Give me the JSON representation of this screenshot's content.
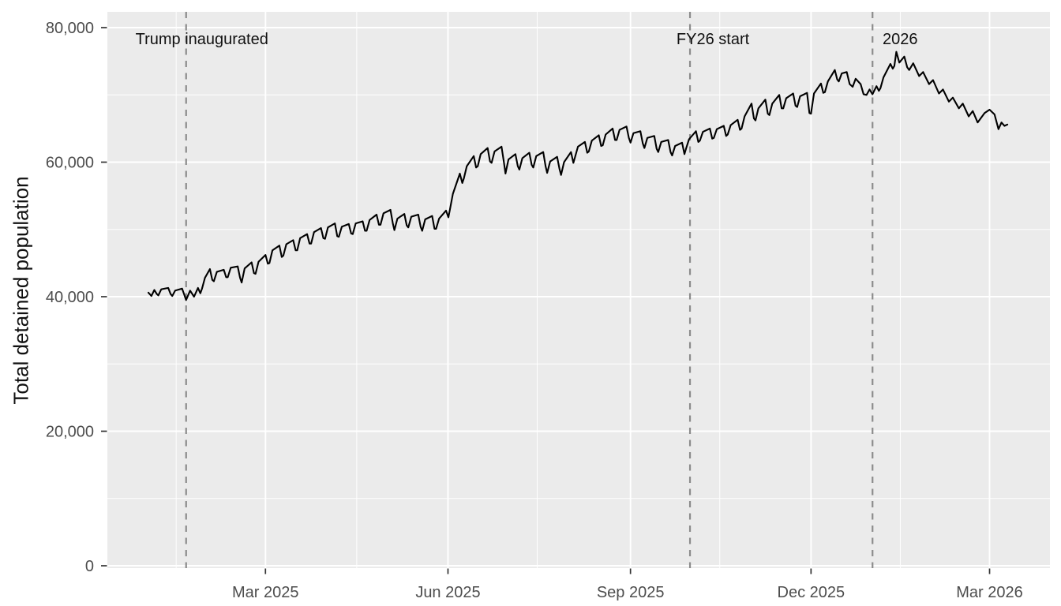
{
  "chart_data": {
    "type": "line",
    "title": "",
    "xlabel": "",
    "ylabel": "Total detained population",
    "legend": "none",
    "x_axis": {
      "tick_labels": [
        "Mar 2025",
        "Jun 2025",
        "Sep 2025",
        "Dec 2025",
        "Mar 2026"
      ],
      "tick_days": [
        59,
        151,
        243,
        334,
        424
      ],
      "minor_grid_days": [
        14,
        105,
        196,
        288,
        379
      ],
      "day_zero": "start of line (early Jan 2025)"
    },
    "y_axis": {
      "tick_labels": [
        "0",
        "20,000",
        "40,000",
        "60,000",
        "80,000"
      ],
      "tick_values": [
        0,
        20000,
        40000,
        60000,
        80000
      ],
      "minor_grid_values": [
        10000,
        30000,
        50000,
        70000
      ],
      "range": [
        0,
        80000
      ],
      "grid": true
    },
    "events": [
      {
        "label": "Trump inaugurated",
        "day": 19
      },
      {
        "label": "FY26 start",
        "day": 273
      },
      {
        "label": "2026",
        "day": 365
      }
    ],
    "series": [
      {
        "name": "Total detained population",
        "units": "thousands of people",
        "points_day_value": [
          [
            0,
            40.6
          ],
          [
            1.5,
            40.1
          ],
          [
            3,
            41.0
          ],
          [
            4.2,
            40.4
          ],
          [
            5,
            40.2
          ],
          [
            6.5,
            41.1
          ],
          [
            10,
            41.3
          ],
          [
            11.2,
            40.4
          ],
          [
            12,
            40.1
          ],
          [
            13.5,
            40.9
          ],
          [
            17,
            41.2
          ],
          [
            18.2,
            40.2
          ],
          [
            19,
            39.5
          ],
          [
            21,
            40.9
          ],
          [
            23,
            40.0
          ],
          [
            25,
            41.3
          ],
          [
            26.2,
            40.5
          ],
          [
            27,
            41.2
          ],
          [
            28.5,
            42.8
          ],
          [
            31,
            44.1
          ],
          [
            32.2,
            42.5
          ],
          [
            33,
            42.3
          ],
          [
            34.5,
            43.7
          ],
          [
            38,
            44.0
          ],
          [
            39.2,
            42.9
          ],
          [
            40,
            42.9
          ],
          [
            41.5,
            44.3
          ],
          [
            45,
            44.5
          ],
          [
            46.2,
            42.8
          ],
          [
            47,
            42.1
          ],
          [
            48.5,
            44.2
          ],
          [
            52,
            45.1
          ],
          [
            53.2,
            43.5
          ],
          [
            54,
            43.4
          ],
          [
            55.5,
            45.2
          ],
          [
            59,
            46.2
          ],
          [
            60.2,
            44.9
          ],
          [
            61,
            45.0
          ],
          [
            62.5,
            46.9
          ],
          [
            66,
            47.6
          ],
          [
            67.2,
            45.9
          ],
          [
            68,
            46.1
          ],
          [
            69.5,
            47.8
          ],
          [
            73,
            48.4
          ],
          [
            74.2,
            46.9
          ],
          [
            75,
            46.9
          ],
          [
            76.5,
            48.7
          ],
          [
            80,
            49.3
          ],
          [
            81.2,
            47.9
          ],
          [
            82,
            47.9
          ],
          [
            83.5,
            49.6
          ],
          [
            87,
            50.2
          ],
          [
            88.2,
            48.7
          ],
          [
            89,
            48.6
          ],
          [
            90.5,
            50.3
          ],
          [
            94,
            50.9
          ],
          [
            95.2,
            49.0
          ],
          [
            96,
            48.9
          ],
          [
            97.5,
            50.4
          ],
          [
            101,
            50.8
          ],
          [
            102.2,
            49.4
          ],
          [
            103,
            49.3
          ],
          [
            104.5,
            50.9
          ],
          [
            108,
            51.2
          ],
          [
            109.2,
            49.8
          ],
          [
            110,
            49.8
          ],
          [
            111.5,
            51.4
          ],
          [
            115,
            52.2
          ],
          [
            116.2,
            50.7
          ],
          [
            117,
            50.7
          ],
          [
            118.5,
            52.4
          ],
          [
            122,
            52.9
          ],
          [
            123.2,
            50.9
          ],
          [
            124,
            49.9
          ],
          [
            125.5,
            51.6
          ],
          [
            129,
            52.3
          ],
          [
            130.2,
            50.6
          ],
          [
            131,
            50.3
          ],
          [
            132.5,
            51.9
          ],
          [
            136,
            52.2
          ],
          [
            137.2,
            50.4
          ],
          [
            138,
            49.8
          ],
          [
            139.5,
            51.5
          ],
          [
            143,
            52.0
          ],
          [
            144.2,
            50.1
          ],
          [
            145,
            50.1
          ],
          [
            146.5,
            51.6
          ],
          [
            150,
            52.8
          ],
          [
            151.2,
            51.8
          ],
          [
            152,
            53.0
          ],
          [
            153.5,
            55.3
          ],
          [
            157,
            58.3
          ],
          [
            158.2,
            56.9
          ],
          [
            159,
            57.6
          ],
          [
            160.5,
            59.4
          ],
          [
            164,
            60.9
          ],
          [
            165.2,
            59.2
          ],
          [
            166,
            59.4
          ],
          [
            167.5,
            61.2
          ],
          [
            171,
            62.1
          ],
          [
            172.2,
            60.1
          ],
          [
            173,
            59.9
          ],
          [
            174.5,
            61.6
          ],
          [
            178,
            62.3
          ],
          [
            179.2,
            60.0
          ],
          [
            180,
            58.3
          ],
          [
            181.5,
            60.4
          ],
          [
            185,
            61.2
          ],
          [
            186.2,
            59.4
          ],
          [
            187,
            58.9
          ],
          [
            188.5,
            60.6
          ],
          [
            192,
            61.4
          ],
          [
            193.2,
            59.6
          ],
          [
            194,
            59.2
          ],
          [
            195.5,
            60.9
          ],
          [
            199,
            61.5
          ],
          [
            200.2,
            59.4
          ],
          [
            201,
            58.4
          ],
          [
            202.5,
            60.1
          ],
          [
            206,
            60.8
          ],
          [
            207.2,
            59.0
          ],
          [
            208,
            58.1
          ],
          [
            209.5,
            60.0
          ],
          [
            213,
            61.5
          ],
          [
            214.2,
            59.9
          ],
          [
            215,
            60.7
          ],
          [
            216.5,
            62.3
          ],
          [
            220,
            63.0
          ],
          [
            221.2,
            61.4
          ],
          [
            222,
            61.6
          ],
          [
            223.5,
            63.2
          ],
          [
            227,
            64.0
          ],
          [
            228.2,
            62.4
          ],
          [
            229,
            62.5
          ],
          [
            230.5,
            64.1
          ],
          [
            234,
            65.0
          ],
          [
            235.2,
            63.3
          ],
          [
            236,
            63.3
          ],
          [
            237.5,
            64.8
          ],
          [
            241,
            65.3
          ],
          [
            242.2,
            63.6
          ],
          [
            243,
            62.9
          ],
          [
            244.5,
            64.3
          ],
          [
            248,
            64.6
          ],
          [
            249.2,
            62.8
          ],
          [
            250,
            62.1
          ],
          [
            251.5,
            63.6
          ],
          [
            255,
            63.9
          ],
          [
            256.2,
            62.0
          ],
          [
            257,
            61.5
          ],
          [
            258.5,
            63.0
          ],
          [
            262,
            63.3
          ],
          [
            263.2,
            61.5
          ],
          [
            264,
            61.0
          ],
          [
            265.5,
            62.4
          ],
          [
            269,
            62.9
          ],
          [
            270.2,
            61.2
          ],
          [
            271,
            62.0
          ],
          [
            272.5,
            63.4
          ],
          [
            276,
            64.6
          ],
          [
            277.2,
            63.0
          ],
          [
            278,
            63.2
          ],
          [
            279.5,
            64.5
          ],
          [
            283,
            65.0
          ],
          [
            284.2,
            63.5
          ],
          [
            285,
            63.6
          ],
          [
            286.5,
            64.9
          ],
          [
            290,
            65.4
          ],
          [
            291.2,
            63.9
          ],
          [
            292,
            64.1
          ],
          [
            293.5,
            65.5
          ],
          [
            297,
            66.3
          ],
          [
            298.2,
            64.8
          ],
          [
            299,
            65.0
          ],
          [
            300.5,
            66.8
          ],
          [
            304,
            68.7
          ],
          [
            305.2,
            66.5
          ],
          [
            306,
            66.2
          ],
          [
            307.5,
            68.0
          ],
          [
            311,
            69.3
          ],
          [
            312.2,
            67.2
          ],
          [
            313,
            67.0
          ],
          [
            314.5,
            68.7
          ],
          [
            318,
            70.0
          ],
          [
            319.2,
            68.0
          ],
          [
            320,
            68.0
          ],
          [
            321.5,
            69.5
          ],
          [
            325,
            70.2
          ],
          [
            326.2,
            68.4
          ],
          [
            327,
            68.2
          ],
          [
            328.5,
            69.8
          ],
          [
            332,
            70.3
          ],
          [
            333.2,
            67.3
          ],
          [
            334,
            67.2
          ],
          [
            335.5,
            70.2
          ],
          [
            339,
            71.7
          ],
          [
            340.2,
            70.3
          ],
          [
            341,
            70.4
          ],
          [
            342.5,
            72.0
          ],
          [
            346,
            73.7
          ],
          [
            347.2,
            72.3
          ],
          [
            348,
            72.0
          ],
          [
            349.5,
            73.2
          ],
          [
            352,
            73.4
          ],
          [
            353.5,
            71.6
          ],
          [
            355,
            71.2
          ],
          [
            356.5,
            72.4
          ],
          [
            359,
            71.6
          ],
          [
            360.5,
            70.1
          ],
          [
            362,
            70.0
          ],
          [
            363.5,
            70.8
          ],
          [
            365,
            70.1
          ],
          [
            367,
            71.3
          ],
          [
            368.2,
            70.6
          ],
          [
            369,
            71.0
          ],
          [
            370.5,
            72.6
          ],
          [
            374,
            74.6
          ],
          [
            375.2,
            73.9
          ],
          [
            376,
            74.3
          ],
          [
            377,
            76.4
          ],
          [
            378.5,
            74.8
          ],
          [
            381,
            75.7
          ],
          [
            382.5,
            74.1
          ],
          [
            383.5,
            73.7
          ],
          [
            385.5,
            74.7
          ],
          [
            388.5,
            72.8
          ],
          [
            390.5,
            73.4
          ],
          [
            393.5,
            71.6
          ],
          [
            395.5,
            72.2
          ],
          [
            398.5,
            70.2
          ],
          [
            400.5,
            70.8
          ],
          [
            403.5,
            69.0
          ],
          [
            405.5,
            69.6
          ],
          [
            408.5,
            68.0
          ],
          [
            410.5,
            68.7
          ],
          [
            413.5,
            66.8
          ],
          [
            415.5,
            67.6
          ],
          [
            418,
            65.9
          ],
          [
            421.5,
            67.3
          ],
          [
            424,
            67.8
          ],
          [
            426.5,
            67.1
          ],
          [
            428.5,
            64.9
          ],
          [
            430,
            65.9
          ],
          [
            431.5,
            65.4
          ],
          [
            433,
            65.6
          ]
        ]
      }
    ],
    "colors": {
      "figure_background": "#FFFFFF",
      "panel_background": "#EBEBEB",
      "gridline": "#FFFFFF",
      "data_line": "#000000",
      "event_line": "#8C8C8C",
      "axis_text": "#4D4D4D",
      "tick_mark": "#333333",
      "annotation_text": "#111111",
      "axis_title": "#111111"
    }
  }
}
